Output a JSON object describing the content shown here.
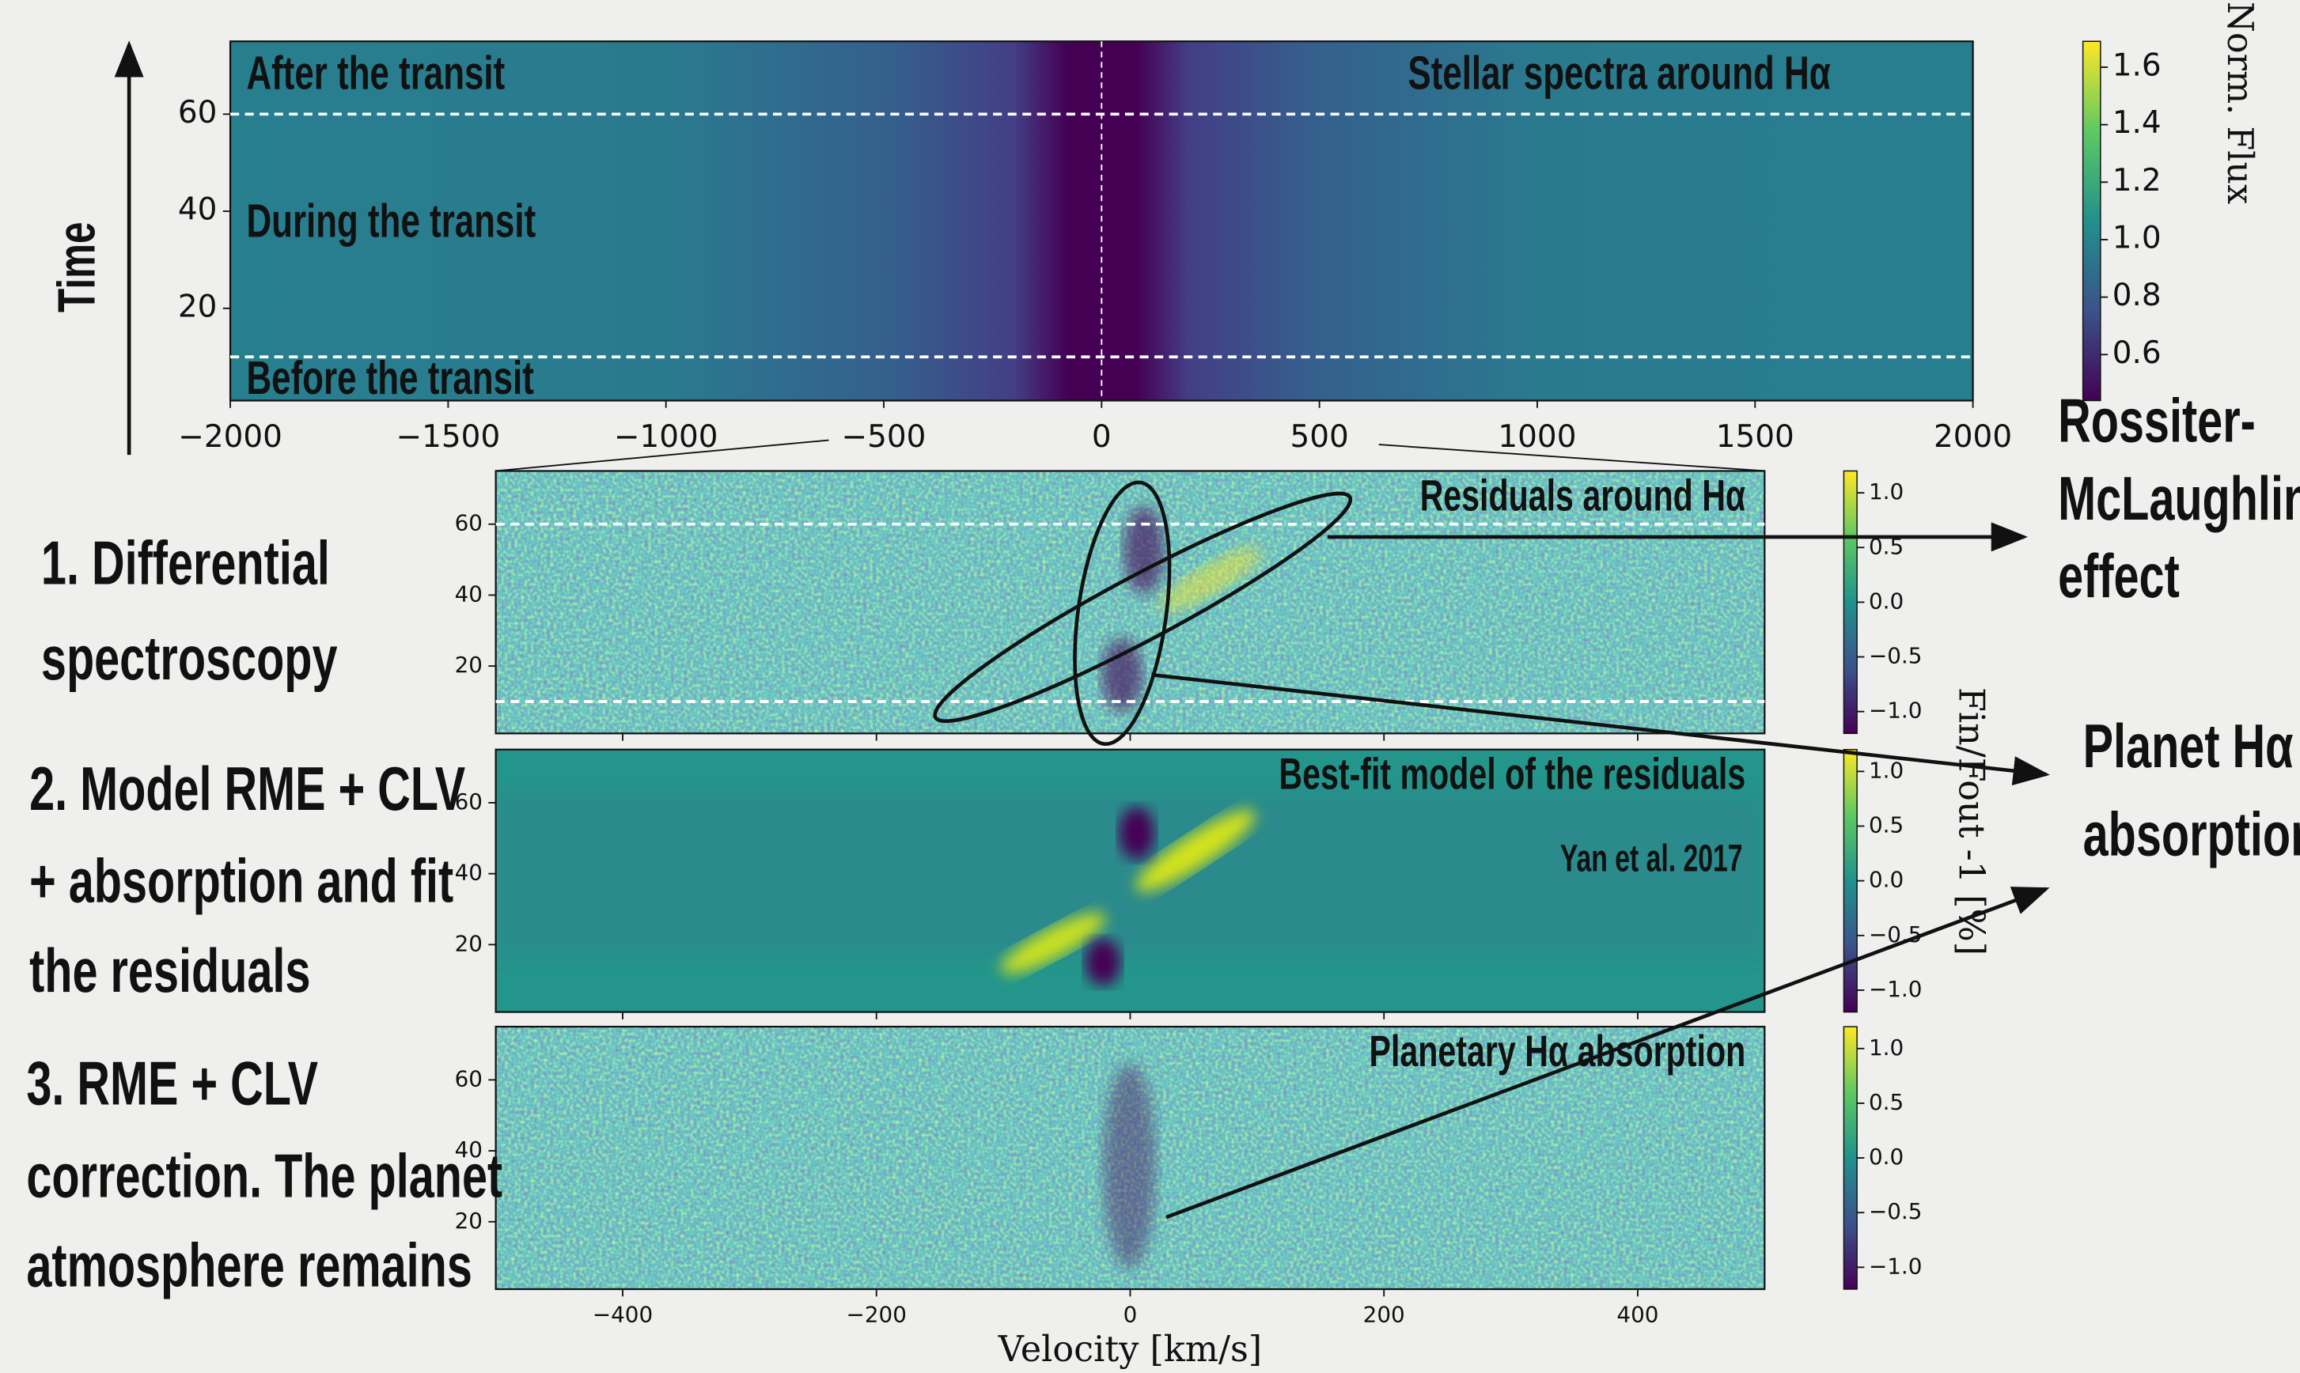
{
  "chart_data": [
    {
      "type": "heatmap",
      "title": "Stellar spectra around Hα",
      "ylabel": "Time",
      "annotations": [
        "After the transit",
        "During the transit",
        "Before the transit"
      ],
      "xlim": [
        -2000,
        2000
      ],
      "xticks": [
        {
          "value": -2000,
          "label": "−2000"
        },
        {
          "value": -1500,
          "label": "−1500"
        },
        {
          "value": -1000,
          "label": "−1000"
        },
        {
          "value": -500,
          "label": "−500"
        },
        0,
        500,
        1000,
        1500,
        2000
      ],
      "ylim": [
        1,
        75
      ],
      "yticks": [
        20,
        40,
        60
      ],
      "hlines": [
        10,
        60
      ],
      "vlines": [
        0
      ],
      "colorbar": {
        "label": "Norm. Flux",
        "lim": [
          0.44,
          1.69
        ],
        "ticks": [
          0.6,
          0.8,
          {
            "value": 1,
            "label": "1.0"
          },
          1.2,
          1.4,
          1.6
        ]
      }
    },
    {
      "type": "heatmap",
      "title": "Residuals around Hα",
      "xlim": [
        -500,
        500
      ],
      "xticks": [
        -400,
        -200,
        0,
        200,
        400
      ],
      "ylim": [
        1,
        75
      ],
      "yticks": [
        20,
        40,
        60
      ],
      "hlines": [
        10,
        60
      ],
      "colorbar": {
        "label": "Fin/Fout -1 [%]",
        "lim": [
          -1.2,
          1.2
        ],
        "ticks": [
          {
            "value": 1,
            "label": "1.0"
          },
          0.5,
          {
            "value": 0,
            "label": "0.0"
          },
          {
            "value": -0.5,
            "label": "−0.5"
          },
          {
            "value": -1,
            "label": "−1.0"
          }
        ]
      }
    },
    {
      "type": "heatmap",
      "title": "Best-fit model of the residuals",
      "annotations": [
        "Yan et al. 2017"
      ],
      "xlim": [
        -500,
        500
      ],
      "xticks": [
        -400,
        -200,
        0,
        200,
        400
      ],
      "ylim": [
        1,
        75
      ],
      "yticks": [
        20,
        40,
        60
      ],
      "colorbar": {
        "lim": [
          -1.2,
          1.2
        ],
        "ticks": [
          {
            "value": 1,
            "label": "1.0"
          },
          0.5,
          {
            "value": 0,
            "label": "0.0"
          },
          {
            "value": -0.5,
            "label": "−0.5"
          },
          {
            "value": -1,
            "label": "−1.0"
          }
        ]
      }
    },
    {
      "type": "heatmap",
      "title": "Planetary Hα absorption",
      "xlabel": "Velocity [km/s]",
      "xlim": [
        -500,
        500
      ],
      "xticks": [
        {
          "value": -400,
          "label": "−400"
        },
        {
          "value": -200,
          "label": "−200"
        },
        0,
        200,
        400
      ],
      "ylim": [
        1,
        75
      ],
      "yticks": [
        20,
        40,
        60
      ],
      "colorbar": {
        "lim": [
          -1.2,
          1.2
        ],
        "ticks": [
          {
            "value": 1,
            "label": "1.0"
          },
          0.5,
          {
            "value": 0,
            "label": "0.0"
          },
          {
            "value": -0.5,
            "label": "−0.5"
          },
          {
            "value": -1,
            "label": "−1.0"
          }
        ]
      }
    }
  ],
  "steps": [
    [
      "1. Differential",
      "spectroscopy"
    ],
    [
      "2. Model RME + CLV",
      "+ absorption and fit",
      "the residuals"
    ],
    [
      "3. RME + CLV",
      "correction. The planet",
      "atmosphere remains"
    ]
  ],
  "callouts": [
    [
      "Rossiter-",
      "McLaughlin",
      "effect"
    ],
    [
      "Planet Hα",
      "absorption"
    ]
  ]
}
